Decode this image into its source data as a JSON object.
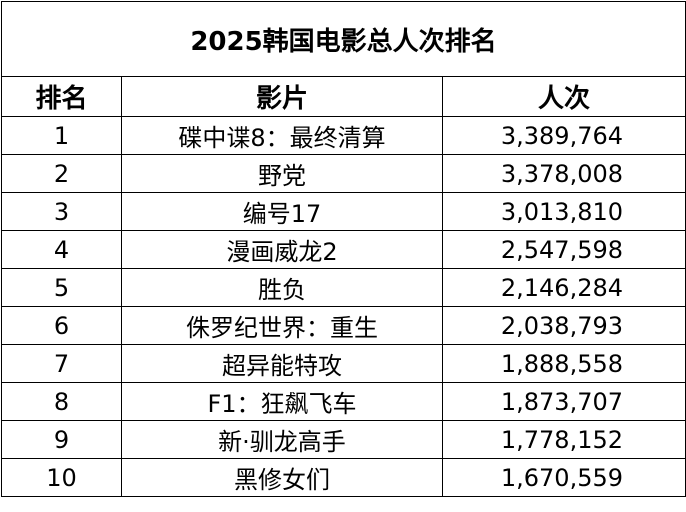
{
  "title": "2025韩国电影总人次排名",
  "headers": {
    "rank": "排名",
    "film": "影片",
    "people": "人次"
  },
  "rows": [
    {
      "rank": "1",
      "film": "碟中谍8：最终清算",
      "people": "3,389,764"
    },
    {
      "rank": "2",
      "film": "野党",
      "people": "3,378,008"
    },
    {
      "rank": "3",
      "film": "编号17",
      "people": "3,013,810"
    },
    {
      "rank": "4",
      "film": "漫画威龙2",
      "people": "2,547,598"
    },
    {
      "rank": "5",
      "film": "胜负",
      "people": "2,146,284"
    },
    {
      "rank": "6",
      "film": "侏罗纪世界：重生",
      "people": "2,038,793"
    },
    {
      "rank": "7",
      "film": "超异能特攻",
      "people": "1,888,558"
    },
    {
      "rank": "8",
      "film": "F1：狂飙飞车",
      "people": "1,873,707"
    },
    {
      "rank": "9",
      "film": "新·驯龙高手",
      "people": "1,778,152"
    },
    {
      "rank": "10",
      "film": "黑修女们",
      "people": "1,670,559"
    }
  ]
}
